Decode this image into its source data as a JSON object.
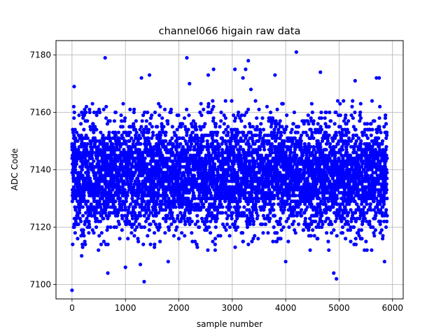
{
  "chart_data": {
    "type": "scatter",
    "title": "channel066 higain raw data",
    "xlabel": "sample number",
    "ylabel": "ADC Code",
    "xlim": [
      -300,
      6200
    ],
    "ylim": [
      7095,
      7185
    ],
    "xticks": [
      0,
      1000,
      2000,
      3000,
      4000,
      5000,
      6000
    ],
    "yticks": [
      7100,
      7120,
      7140,
      7160,
      7180
    ],
    "grid": true,
    "marker_color": "#0000ff",
    "sample_count": 5900,
    "series": [
      {
        "typical_range": [
          7112,
          7164
        ],
        "outliers": [
          {
            "x": 0,
            "y": 7098
          },
          {
            "x": 40,
            "y": 7169
          },
          {
            "x": 180,
            "y": 7110
          },
          {
            "x": 620,
            "y": 7179
          },
          {
            "x": 670,
            "y": 7104
          },
          {
            "x": 1000,
            "y": 7106
          },
          {
            "x": 1280,
            "y": 7107
          },
          {
            "x": 1300,
            "y": 7172
          },
          {
            "x": 1350,
            "y": 7101
          },
          {
            "x": 1450,
            "y": 7173
          },
          {
            "x": 1800,
            "y": 7108
          },
          {
            "x": 2150,
            "y": 7179
          },
          {
            "x": 2200,
            "y": 7170
          },
          {
            "x": 2550,
            "y": 7173
          },
          {
            "x": 2650,
            "y": 7175
          },
          {
            "x": 3050,
            "y": 7175
          },
          {
            "x": 3200,
            "y": 7172
          },
          {
            "x": 3250,
            "y": 7175
          },
          {
            "x": 3300,
            "y": 7178
          },
          {
            "x": 3350,
            "y": 7168
          },
          {
            "x": 3800,
            "y": 7173
          },
          {
            "x": 4000,
            "y": 7108
          },
          {
            "x": 4200,
            "y": 7181
          },
          {
            "x": 4650,
            "y": 7174
          },
          {
            "x": 4900,
            "y": 7104
          },
          {
            "x": 4950,
            "y": 7102
          },
          {
            "x": 5300,
            "y": 7171
          },
          {
            "x": 5700,
            "y": 7172
          },
          {
            "x": 5750,
            "y": 7172
          },
          {
            "x": 5850,
            "y": 7108
          }
        ]
      }
    ]
  }
}
